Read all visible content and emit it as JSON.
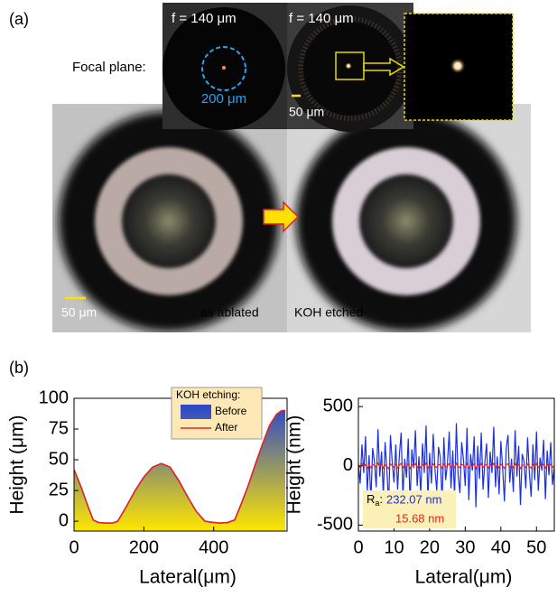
{
  "panel_a": {
    "label": "(a)",
    "focal_plane_label": "Focal plane:",
    "focal_length_1": "f = 140 μm",
    "focal_length_2": "f = 140 μm",
    "circle_label": "200 μm",
    "scale_bar_top": "50 μm",
    "scale_bar_bottom": "50 μm",
    "caption_left": "as ablated",
    "caption_right": "KOH etched"
  },
  "panel_b": {
    "label": "(b)"
  },
  "chart_data": [
    {
      "type": "area",
      "ylabel": "Height (μm)",
      "xlabel": "Lateral(μm)",
      "xlim": [
        0,
        610
      ],
      "ylim": [
        -8,
        100
      ],
      "xticks": [
        0,
        200,
        400
      ],
      "yticks": [
        0,
        25,
        50,
        75,
        100
      ],
      "legend": "upper center",
      "legend_title": "KOH etching:",
      "x": [
        0,
        20,
        40,
        55,
        70,
        90,
        110,
        125,
        150,
        175,
        200,
        225,
        250,
        275,
        300,
        325,
        350,
        375,
        400,
        420,
        440,
        460,
        480,
        500,
        520,
        540,
        560,
        580,
        595,
        605
      ],
      "series": [
        {
          "name": "Before",
          "color": "#5b3fc0",
          "fill_gradient": [
            "#1f3fd6",
            "#ffe600"
          ],
          "values": [
            42,
            28,
            12,
            1,
            -1,
            -1.5,
            -1.5,
            0,
            12,
            25,
            36,
            44,
            47,
            44,
            33,
            20,
            8,
            0,
            -1,
            -1.5,
            -1,
            1,
            15,
            30,
            47,
            63,
            78,
            87,
            90,
            90
          ]
        },
        {
          "name": "After",
          "color": "#e8231d",
          "values": [
            42,
            28,
            12,
            1,
            -1,
            -1.5,
            -1.5,
            0,
            12,
            25,
            36,
            44,
            47,
            44,
            33,
            20,
            8,
            0,
            -1,
            -1.5,
            -1,
            1,
            15,
            30,
            47,
            63,
            78,
            87,
            90,
            90
          ]
        }
      ]
    },
    {
      "type": "line",
      "ylabel": "Height (nm)",
      "xlabel": "Lateral(μm)",
      "xlim": [
        0,
        55
      ],
      "ylim": [
        -550,
        570
      ],
      "xticks": [
        0,
        10,
        20,
        30,
        40,
        50
      ],
      "yticks": [
        -500,
        0,
        500
      ],
      "annotation": {
        "label": "R",
        "subscript": "a",
        "separator": ":",
        "texts": [
          "232.07 nm",
          "15.68 nm"
        ],
        "box_color": "#fbf0b8"
      },
      "x": [
        0,
        0.5,
        1,
        1.5,
        2,
        2.5,
        3,
        3.5,
        4,
        4.5,
        5,
        5.5,
        6,
        6.5,
        7,
        7.5,
        8,
        8.5,
        9,
        9.5,
        10,
        10.5,
        11,
        11.5,
        12,
        12.5,
        13,
        13.5,
        14,
        14.5,
        15,
        15.5,
        16,
        16.5,
        17,
        17.5,
        18,
        18.5,
        19,
        19.5,
        20,
        20.5,
        21,
        21.5,
        22,
        22.5,
        23,
        23.5,
        24,
        24.5,
        25,
        25.5,
        26,
        26.5,
        27,
        27.5,
        28,
        28.5,
        29,
        29.5,
        30,
        30.5,
        31,
        31.5,
        32,
        32.5,
        33,
        33.5,
        34,
        34.5,
        35,
        35.5,
        36,
        36.5,
        37,
        37.5,
        38,
        38.5,
        39,
        39.5,
        40,
        40.5,
        41,
        41.5,
        42,
        42.5,
        43,
        43.5,
        44,
        44.5,
        45,
        45.5,
        46,
        46.5,
        47,
        47.5,
        48,
        48.5,
        49,
        49.5,
        50,
        50.5,
        51,
        51.5,
        52,
        52.5,
        53,
        53.5,
        54,
        54.5,
        55
      ],
      "series": [
        {
          "name": "Before",
          "color": "#1a2fe0",
          "values": [
            20,
            -150,
            180,
            -60,
            250,
            -220,
            90,
            -300,
            150,
            40,
            -180,
            310,
            -90,
            120,
            -250,
            200,
            -40,
            -320,
            260,
            30,
            -140,
            180,
            -200,
            90,
            280,
            -260,
            60,
            -100,
            230,
            -330,
            140,
            -20,
            300,
            -170,
            80,
            -240,
            190,
            -60,
            340,
            -280,
            110,
            -150,
            270,
            -30,
            -210,
            160,
            70,
            -310,
            240,
            -120,
            20,
            290,
            -190,
            130,
            -260,
            360,
            -80,
            -230,
            200,
            50,
            -170,
            320,
            -290,
            100,
            -40,
            250,
            -350,
            170,
            -110,
            280,
            -200,
            30,
            190,
            -270,
            120,
            -60,
            330,
            -180,
            80,
            -240,
            210,
            -20,
            -300,
            150,
            260,
            -140,
            60,
            -220,
            300,
            -90,
            170,
            -330,
            100,
            40,
            -190,
            240,
            -60,
            -260,
            180,
            -120,
            290,
            -210,
            70,
            -40,
            220,
            -280,
            130,
            -80,
            200,
            -160,
            -10
          ]
        },
        {
          "name": "After",
          "color": "#e8231d",
          "values": [
            5,
            -12,
            18,
            -4,
            10,
            -20,
            8,
            -15,
            12,
            3,
            -9,
            22,
            -6,
            14,
            -18,
            7,
            -3,
            -25,
            16,
            2,
            -11,
            13,
            -17,
            6,
            20,
            -14,
            4,
            -8,
            15,
            -22,
            10,
            -2,
            19,
            -12,
            5,
            -16,
            11,
            -4,
            24,
            -19,
            8,
            -10,
            17,
            -3,
            -14,
            12,
            6,
            -21,
            15,
            -9,
            2,
            18,
            -13,
            9,
            -17,
            23,
            -6,
            -15,
            13,
            4,
            -12,
            20,
            -18,
            7,
            -3,
            16,
            -24,
            11,
            -8,
            19,
            -14,
            3,
            12,
            -19,
            8,
            -5,
            21,
            -11,
            6,
            -16,
            14,
            -2,
            -20,
            10,
            17,
            -9,
            5,
            -15,
            19,
            -7,
            12,
            -22,
            7,
            3,
            -13,
            16,
            -5,
            -18,
            11,
            -8,
            18,
            -14,
            6,
            -3,
            15,
            -19,
            9,
            -6,
            13,
            -11,
            -1
          ]
        }
      ]
    }
  ]
}
